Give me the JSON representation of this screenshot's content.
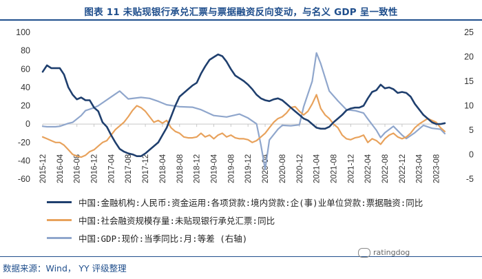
{
  "title": "图表 11 未贴现银行承兑汇票与票据融资反向变动，与名义 GDP 呈一致性",
  "source": "数据来源：Wind， YY 评级整理",
  "watermark": "ratingdog",
  "chart_data": {
    "type": "line",
    "x_ticks": [
      "2015-12",
      "2016-04",
      "2016-08",
      "2016-12",
      "2017-04",
      "2017-08",
      "2017-12",
      "2018-04",
      "2018-08",
      "2018-12",
      "2019-04",
      "2019-08",
      "2019-12",
      "2020-04",
      "2020-08",
      "2020-12",
      "2021-04",
      "2021-08",
      "2021-12",
      "2022-04",
      "2022-08",
      "2022-12",
      "2023-04",
      "2023-08"
    ],
    "x_range": [
      2015.917,
      2023.75
    ],
    "y_left": {
      "min": -60,
      "max": 100,
      "ticks": [
        -60,
        -40,
        -20,
        0,
        20,
        40,
        60,
        80,
        100
      ]
    },
    "y_right": {
      "min": -5,
      "max": 25,
      "ticks": [
        -5,
        0,
        5,
        10,
        15,
        20,
        25
      ]
    },
    "grid": false,
    "legend_position": "bottom",
    "series": [
      {
        "name": "中国:金融机构:人民币:资金运用:各项贷款:境内贷款:企(事)业单位贷款:票据融资:同比",
        "color": "#1f3f6e",
        "axis": "left",
        "points": [
          [
            2015.917,
            57
          ],
          [
            2016.0,
            64
          ],
          [
            2016.083,
            61
          ],
          [
            2016.167,
            61
          ],
          [
            2016.25,
            61
          ],
          [
            2016.333,
            54
          ],
          [
            2016.417,
            40
          ],
          [
            2016.5,
            32
          ],
          [
            2016.583,
            27
          ],
          [
            2016.667,
            29
          ],
          [
            2016.75,
            26
          ],
          [
            2016.833,
            26
          ],
          [
            2016.917,
            18
          ],
          [
            2017.0,
            14
          ],
          [
            2017.083,
            2
          ],
          [
            2017.167,
            -3
          ],
          [
            2017.25,
            -12
          ],
          [
            2017.333,
            -20
          ],
          [
            2017.417,
            -27
          ],
          [
            2017.5,
            -30
          ],
          [
            2017.583,
            -32
          ],
          [
            2017.667,
            -33
          ],
          [
            2017.75,
            -35
          ],
          [
            2017.833,
            -35
          ],
          [
            2017.917,
            -32
          ],
          [
            2018.0,
            -28
          ],
          [
            2018.083,
            -24
          ],
          [
            2018.167,
            -20
          ],
          [
            2018.25,
            -12
          ],
          [
            2018.333,
            -4
          ],
          [
            2018.417,
            8
          ],
          [
            2018.5,
            20
          ],
          [
            2018.583,
            30
          ],
          [
            2018.667,
            34
          ],
          [
            2018.75,
            38
          ],
          [
            2018.833,
            42
          ],
          [
            2018.917,
            45
          ],
          [
            2019.0,
            55
          ],
          [
            2019.083,
            63
          ],
          [
            2019.167,
            70
          ],
          [
            2019.25,
            73
          ],
          [
            2019.333,
            76
          ],
          [
            2019.417,
            74
          ],
          [
            2019.5,
            68
          ],
          [
            2019.583,
            60
          ],
          [
            2019.667,
            53
          ],
          [
            2019.75,
            50
          ],
          [
            2019.833,
            47
          ],
          [
            2019.917,
            43
          ],
          [
            2020.0,
            38
          ],
          [
            2020.083,
            32
          ],
          [
            2020.167,
            28
          ],
          [
            2020.25,
            26
          ],
          [
            2020.333,
            25
          ],
          [
            2020.417,
            27
          ],
          [
            2020.5,
            28
          ],
          [
            2020.583,
            26
          ],
          [
            2020.667,
            22
          ],
          [
            2020.75,
            18
          ],
          [
            2020.833,
            14
          ],
          [
            2020.917,
            10
          ],
          [
            2021.0,
            6
          ],
          [
            2021.083,
            4
          ],
          [
            2021.167,
            0
          ],
          [
            2021.25,
            -4
          ],
          [
            2021.333,
            -5
          ],
          [
            2021.417,
            -5
          ],
          [
            2021.5,
            -3
          ],
          [
            2021.583,
            2
          ],
          [
            2021.667,
            6
          ],
          [
            2021.75,
            10
          ],
          [
            2021.833,
            15
          ],
          [
            2021.917,
            17
          ],
          [
            2022.0,
            18
          ],
          [
            2022.083,
            18
          ],
          [
            2022.167,
            20
          ],
          [
            2022.25,
            28
          ],
          [
            2022.333,
            35
          ],
          [
            2022.417,
            37
          ],
          [
            2022.5,
            43
          ],
          [
            2022.583,
            39
          ],
          [
            2022.667,
            40
          ],
          [
            2022.75,
            38
          ],
          [
            2022.833,
            34
          ],
          [
            2022.917,
            35
          ],
          [
            2023.0,
            34
          ],
          [
            2023.083,
            30
          ],
          [
            2023.167,
            22
          ],
          [
            2023.25,
            16
          ],
          [
            2023.333,
            10
          ],
          [
            2023.417,
            6
          ],
          [
            2023.5,
            2
          ],
          [
            2023.583,
            0
          ],
          [
            2023.667,
            0
          ],
          [
            2023.75,
            1
          ]
        ]
      },
      {
        "name": "中国:社会融资规模存量:未贴现银行承兑汇票:同比",
        "color": "#e8a25c",
        "axis": "left",
        "points": [
          [
            2015.917,
            -14
          ],
          [
            2016.0,
            -16
          ],
          [
            2016.083,
            -18
          ],
          [
            2016.167,
            -20
          ],
          [
            2016.25,
            -20
          ],
          [
            2016.333,
            -23
          ],
          [
            2016.417,
            -28
          ],
          [
            2016.5,
            -33
          ],
          [
            2016.583,
            -35
          ],
          [
            2016.667,
            -36
          ],
          [
            2016.75,
            -34
          ],
          [
            2016.833,
            -30
          ],
          [
            2016.917,
            -28
          ],
          [
            2017.0,
            -24
          ],
          [
            2017.083,
            -20
          ],
          [
            2017.167,
            -18
          ],
          [
            2017.25,
            -12
          ],
          [
            2017.333,
            -6
          ],
          [
            2017.417,
            -2
          ],
          [
            2017.5,
            2
          ],
          [
            2017.583,
            8
          ],
          [
            2017.667,
            15
          ],
          [
            2017.75,
            20
          ],
          [
            2017.833,
            18
          ],
          [
            2017.917,
            14
          ],
          [
            2018.0,
            8
          ],
          [
            2018.083,
            2
          ],
          [
            2018.167,
            4
          ],
          [
            2018.25,
            1
          ],
          [
            2018.333,
            4
          ],
          [
            2018.417,
            -4
          ],
          [
            2018.5,
            -8
          ],
          [
            2018.583,
            -10
          ],
          [
            2018.667,
            -14
          ],
          [
            2018.75,
            -15
          ],
          [
            2018.833,
            -15
          ],
          [
            2018.917,
            -14
          ],
          [
            2019.0,
            -10
          ],
          [
            2019.083,
            -14
          ],
          [
            2019.167,
            -12
          ],
          [
            2019.25,
            -16
          ],
          [
            2019.333,
            -12
          ],
          [
            2019.417,
            -10
          ],
          [
            2019.5,
            -14
          ],
          [
            2019.583,
            -12
          ],
          [
            2019.667,
            -15
          ],
          [
            2019.75,
            -16
          ],
          [
            2019.833,
            -16
          ],
          [
            2019.917,
            -17
          ],
          [
            2020.0,
            -20
          ],
          [
            2020.083,
            -18
          ],
          [
            2020.167,
            -14
          ],
          [
            2020.25,
            -10
          ],
          [
            2020.333,
            -4
          ],
          [
            2020.417,
            2
          ],
          [
            2020.5,
            6
          ],
          [
            2020.583,
            8
          ],
          [
            2020.667,
            12
          ],
          [
            2020.75,
            18
          ],
          [
            2020.833,
            19
          ],
          [
            2020.917,
            14
          ],
          [
            2021.0,
            10
          ],
          [
            2021.083,
            14
          ],
          [
            2021.167,
            22
          ],
          [
            2021.25,
            32
          ],
          [
            2021.333,
            17
          ],
          [
            2021.417,
            10
          ],
          [
            2021.5,
            6
          ],
          [
            2021.583,
            0
          ],
          [
            2021.667,
            -4
          ],
          [
            2021.75,
            -12
          ],
          [
            2021.833,
            -16
          ],
          [
            2021.917,
            -17
          ],
          [
            2022.0,
            -15
          ],
          [
            2022.083,
            -14
          ],
          [
            2022.167,
            -12
          ],
          [
            2022.25,
            -20
          ],
          [
            2022.333,
            -16
          ],
          [
            2022.417,
            -18
          ],
          [
            2022.5,
            -22
          ],
          [
            2022.583,
            -16
          ],
          [
            2022.667,
            -12
          ],
          [
            2022.75,
            -10
          ],
          [
            2022.833,
            -14
          ],
          [
            2022.917,
            -16
          ],
          [
            2023.0,
            -14
          ],
          [
            2023.083,
            -10
          ],
          [
            2023.167,
            -4
          ],
          [
            2023.25,
            0
          ],
          [
            2023.333,
            3
          ],
          [
            2023.417,
            6
          ],
          [
            2023.5,
            4
          ],
          [
            2023.583,
            2
          ],
          [
            2023.667,
            -4
          ],
          [
            2023.75,
            -8
          ]
        ]
      },
      {
        "name": "中国:GDP:现价:当季同比:月:等差 (右轴)",
        "color": "#8fa6cc",
        "axis": "right",
        "points": [
          [
            2015.917,
            5.8
          ],
          [
            2016.0,
            5.7
          ],
          [
            2016.167,
            5.7
          ],
          [
            2016.25,
            5.8
          ],
          [
            2016.417,
            6.4
          ],
          [
            2016.5,
            6.6
          ],
          [
            2016.667,
            8.0
          ],
          [
            2016.75,
            9.0
          ],
          [
            2016.917,
            9.6
          ],
          [
            2017.0,
            10.0
          ],
          [
            2017.25,
            11.8
          ],
          [
            2017.417,
            13.0
          ],
          [
            2017.583,
            11.4
          ],
          [
            2017.833,
            11.7
          ],
          [
            2018.0,
            11.5
          ],
          [
            2018.167,
            10.9
          ],
          [
            2018.333,
            10.2
          ],
          [
            2018.583,
            9.8
          ],
          [
            2018.833,
            9.7
          ],
          [
            2019.0,
            9.2
          ],
          [
            2019.25,
            8.0
          ],
          [
            2019.5,
            7.7
          ],
          [
            2019.75,
            8.3
          ],
          [
            2019.917,
            7.5
          ],
          [
            2020.083,
            6.3
          ],
          [
            2020.167,
            2.0
          ],
          [
            2020.25,
            -3.0
          ],
          [
            2020.333,
            3.0
          ],
          [
            2020.5,
            5.2
          ],
          [
            2020.583,
            6.0
          ],
          [
            2020.75,
            5.9
          ],
          [
            2020.917,
            6.1
          ],
          [
            2021.0,
            9.8
          ],
          [
            2021.167,
            15.0
          ],
          [
            2021.25,
            20.8
          ],
          [
            2021.333,
            18.6
          ],
          [
            2021.5,
            13.0
          ],
          [
            2021.667,
            11.0
          ],
          [
            2021.833,
            9.2
          ],
          [
            2022.0,
            9.0
          ],
          [
            2022.167,
            8.5
          ],
          [
            2022.25,
            7.3
          ],
          [
            2022.417,
            5.0
          ],
          [
            2022.5,
            3.5
          ],
          [
            2022.583,
            4.5
          ],
          [
            2022.75,
            5.8
          ],
          [
            2022.917,
            4.0
          ],
          [
            2023.0,
            3.3
          ],
          [
            2023.167,
            4.5
          ],
          [
            2023.333,
            6.0
          ],
          [
            2023.5,
            5.4
          ],
          [
            2023.667,
            5.2
          ],
          [
            2023.75,
            4.3
          ]
        ]
      }
    ]
  }
}
